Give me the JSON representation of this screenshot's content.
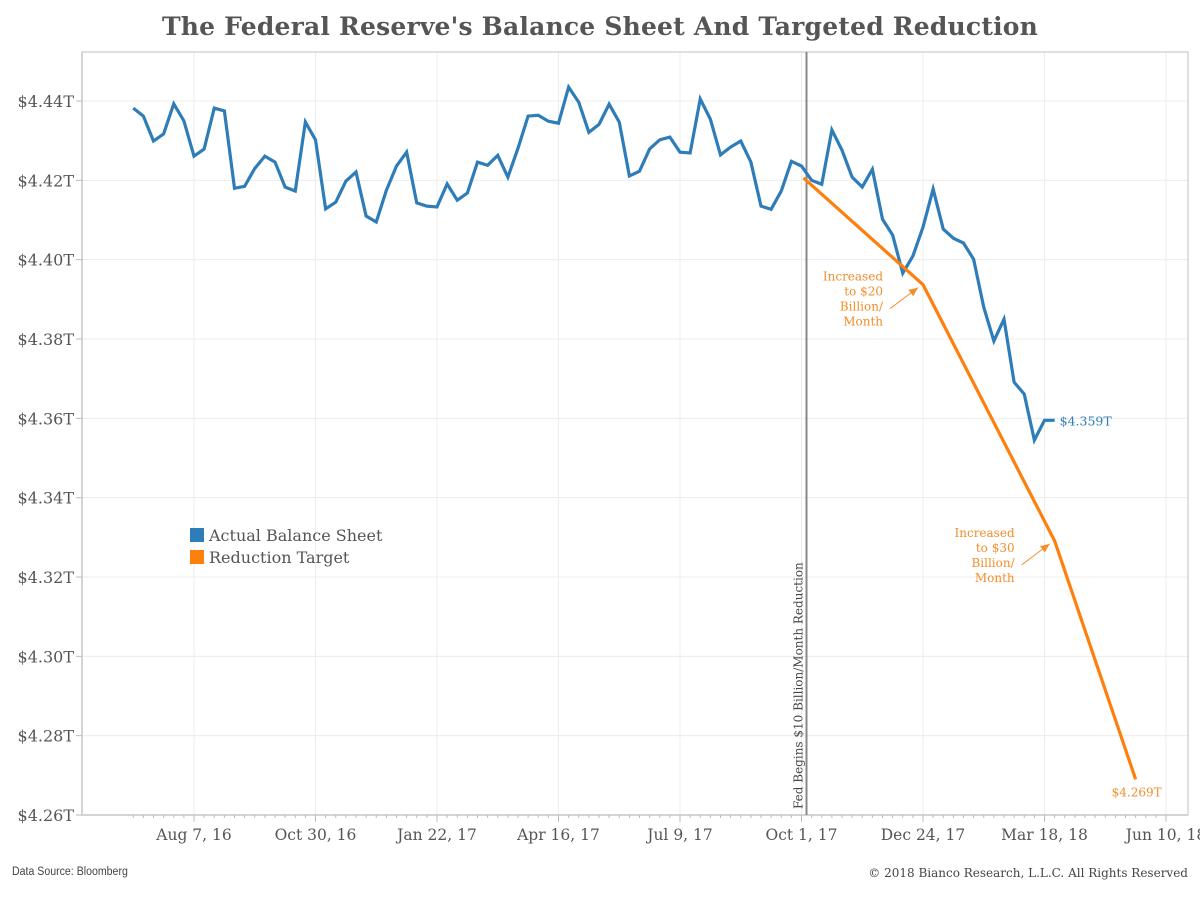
{
  "chart_data": {
    "type": "line",
    "title": "The Federal Reserve's Balance Sheet And Targeted Reduction",
    "xlabel": "",
    "ylabel": "",
    "y_unit": "trillions USD",
    "ylim": [
      4.26,
      4.44
    ],
    "y_ticks": [
      4.44,
      4.42,
      4.4,
      4.38,
      4.36,
      4.34,
      4.32,
      4.3,
      4.28,
      4.26
    ],
    "y_tick_labels": [
      "$4.44T",
      "$4.42T",
      "$4.40T",
      "$4.38T",
      "$4.36T",
      "$4.34T",
      "$4.32T",
      "$4.30T",
      "$4.28T",
      "$4.26T"
    ],
    "x_unit": "weeks since Aug 7, 16",
    "xlim": [
      -6,
      96
    ],
    "x_ticks": [
      0,
      12,
      24,
      36,
      48,
      60,
      72,
      84,
      96
    ],
    "x_tick_labels": [
      "Aug 7, 16",
      "Oct 30, 16",
      "Jan 22, 17",
      "Apr 16, 17",
      "Jul 9, 17",
      "Oct 1, 17",
      "Dec 24, 17",
      "Mar 18, 18",
      "Jun 10, 18"
    ],
    "grid": true,
    "legend": {
      "placement": "left-middle",
      "entries": [
        {
          "label": "Actual Balance Sheet",
          "color": "#2f7db8"
        },
        {
          "label": "Reduction Target",
          "color": "#ff7f0e"
        }
      ]
    },
    "series": [
      {
        "name": "Actual Balance Sheet",
        "color": "#2f7db8",
        "x_start": -6,
        "x_step": 1,
        "values": [
          4.4382,
          4.4362,
          4.4299,
          4.4317,
          4.4393,
          4.435,
          4.4261,
          4.4279,
          4.4382,
          4.4375,
          4.418,
          4.4185,
          4.423,
          4.4261,
          4.4246,
          4.4183,
          4.4173,
          4.4347,
          4.4302,
          4.4128,
          4.4145,
          4.4198,
          4.4221,
          4.411,
          4.4095,
          4.4175,
          4.4236,
          4.4271,
          4.4143,
          4.4135,
          4.4133,
          4.4191,
          4.415,
          4.4168,
          4.4246,
          4.4238,
          4.4263,
          4.4208,
          4.4281,
          4.4362,
          4.4364,
          4.4349,
          4.4344,
          4.4435,
          4.4397,
          4.4321,
          4.4341,
          4.4392,
          4.4347,
          4.4211,
          4.4223,
          4.4279,
          4.4302,
          4.4309,
          4.4271,
          4.4269,
          4.4405,
          4.4354,
          4.4264,
          4.4284,
          4.4299,
          4.4246,
          4.4135,
          4.4127,
          4.4173,
          4.4248,
          4.4236,
          4.42,
          4.419,
          4.4327,
          4.4276,
          4.4208,
          4.4183,
          4.4228,
          4.4102,
          4.4062,
          4.3966,
          4.4009,
          4.4082,
          4.4178,
          4.4077,
          4.4054,
          4.4042,
          4.4001,
          4.388,
          4.3795,
          4.385,
          4.3691,
          4.3661,
          4.3545,
          4.3595,
          4.3595
        ]
      },
      {
        "name": "Reduction Target",
        "color": "#ff7f0e",
        "points": [
          {
            "x": 60.2,
            "y": 4.4206
          },
          {
            "x": 72.0,
            "y": 4.3937
          },
          {
            "x": 85.0,
            "y": 4.3291
          },
          {
            "x": 93.0,
            "y": 4.269
          }
        ]
      }
    ],
    "vertical_line": {
      "x": 60,
      "label": "Fed Begins $10 Billion/Month Reduction",
      "color": "#888888"
    },
    "annotations": [
      {
        "lines": [
          "Increased",
          "to $20",
          "Billion/",
          "Month"
        ],
        "target_x": 72.0,
        "target_y": 4.3937,
        "color": "#f28e2b"
      },
      {
        "lines": [
          "Increased",
          "to $30",
          "Billion/",
          "Month"
        ],
        "target_x": 85.0,
        "target_y": 4.3291,
        "color": "#f28e2b"
      },
      {
        "text": "$4.359T",
        "series": "Actual Balance Sheet",
        "position": "end"
      },
      {
        "text": "$4.269T",
        "series": "Reduction Target",
        "position": "end"
      }
    ]
  },
  "footer": {
    "source": "Data Source: Bloomberg",
    "copyright": "© 2018 Bianco Research, L.L.C. All Rights Reserved"
  }
}
